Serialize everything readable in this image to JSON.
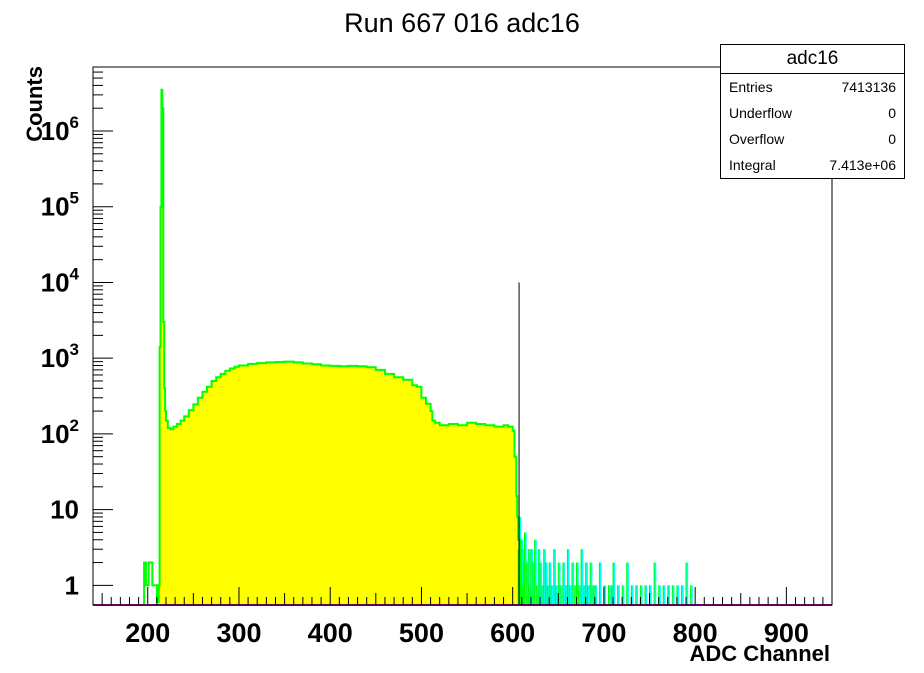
{
  "chart_data": {
    "type": "histogram",
    "title": "Run 667 016 adc16",
    "xlabel": "ADC Channel",
    "ylabel": "Counts",
    "xlim": [
      140,
      950
    ],
    "ylim": [
      0.55,
      7000000
    ],
    "log_y": true,
    "x_ticks": [
      "200",
      "300",
      "400",
      "500",
      "600",
      "700",
      "800",
      "900"
    ],
    "y_ticks": [
      {
        "value": 1,
        "base": "1",
        "exp": ""
      },
      {
        "value": 10,
        "base": "10",
        "exp": ""
      },
      {
        "value": 100,
        "base": "10",
        "exp": "2"
      },
      {
        "value": 1000,
        "base": "10",
        "exp": "3"
      },
      {
        "value": 10000,
        "base": "10",
        "exp": "4"
      },
      {
        "value": 100000,
        "base": "10",
        "exp": "5"
      },
      {
        "value": 1000000,
        "base": "10",
        "exp": "6"
      }
    ],
    "colors": {
      "fill_main": "#ffff00",
      "line_main": "#00ff00",
      "fill_tail": "#00ffff",
      "baseline": "#cc00cc",
      "marker": "#000000"
    },
    "marker_line": {
      "x": 607,
      "y": 10000
    },
    "main_series": [
      [
        196,
        2
      ],
      [
        198,
        1
      ],
      [
        201,
        2
      ],
      [
        205,
        1
      ],
      [
        210,
        0.6
      ],
      [
        212,
        1
      ],
      [
        213,
        1400
      ],
      [
        214,
        100000
      ],
      [
        215,
        3500000
      ],
      [
        216,
        2000000
      ],
      [
        217,
        3000
      ],
      [
        218,
        400
      ],
      [
        219,
        200
      ],
      [
        220,
        150
      ],
      [
        222,
        120
      ],
      [
        225,
        115
      ],
      [
        228,
        125
      ],
      [
        232,
        135
      ],
      [
        236,
        150
      ],
      [
        240,
        170
      ],
      [
        245,
        205
      ],
      [
        250,
        245
      ],
      [
        255,
        300
      ],
      [
        260,
        360
      ],
      [
        265,
        420
      ],
      [
        270,
        500
      ],
      [
        275,
        560
      ],
      [
        280,
        620
      ],
      [
        285,
        680
      ],
      [
        290,
        730
      ],
      [
        295,
        770
      ],
      [
        300,
        800
      ],
      [
        310,
        840
      ],
      [
        320,
        860
      ],
      [
        330,
        880
      ],
      [
        340,
        890
      ],
      [
        350,
        900
      ],
      [
        360,
        880
      ],
      [
        370,
        850
      ],
      [
        380,
        830
      ],
      [
        390,
        800
      ],
      [
        400,
        790
      ],
      [
        410,
        780
      ],
      [
        420,
        790
      ],
      [
        430,
        780
      ],
      [
        440,
        760
      ],
      [
        450,
        700
      ],
      [
        460,
        620
      ],
      [
        470,
        560
      ],
      [
        480,
        520
      ],
      [
        490,
        440
      ],
      [
        495,
        420
      ],
      [
        500,
        300
      ],
      [
        505,
        250
      ],
      [
        510,
        200
      ],
      [
        512,
        150
      ],
      [
        515,
        140
      ],
      [
        520,
        130
      ],
      [
        530,
        135
      ],
      [
        540,
        130
      ],
      [
        550,
        140
      ],
      [
        560,
        135
      ],
      [
        570,
        130
      ],
      [
        580,
        125
      ],
      [
        590,
        130
      ],
      [
        595,
        125
      ],
      [
        600,
        110
      ],
      [
        602,
        50
      ],
      [
        604,
        15
      ],
      [
        605,
        8
      ],
      [
        606,
        4
      ]
    ],
    "tail_series": [
      [
        606,
        3
      ],
      [
        607,
        8
      ],
      [
        608,
        2
      ],
      [
        609,
        4
      ],
      [
        610,
        3
      ],
      [
        611,
        1
      ],
      [
        612,
        2
      ],
      [
        613,
        5
      ],
      [
        615,
        2
      ],
      [
        617,
        3
      ],
      [
        618,
        1
      ],
      [
        620,
        3
      ],
      [
        622,
        2
      ],
      [
        624,
        4
      ],
      [
        626,
        1
      ],
      [
        628,
        3
      ],
      [
        630,
        2
      ],
      [
        632,
        1
      ],
      [
        634,
        3
      ],
      [
        636,
        2
      ],
      [
        638,
        1
      ],
      [
        640,
        2
      ],
      [
        642,
        1
      ],
      [
        645,
        3
      ],
      [
        647,
        1
      ],
      [
        650,
        2
      ],
      [
        652,
        1
      ],
      [
        655,
        2
      ],
      [
        658,
        1
      ],
      [
        660,
        3
      ],
      [
        662,
        1
      ],
      [
        665,
        2
      ],
      [
        668,
        1
      ],
      [
        670,
        2
      ],
      [
        672,
        1
      ],
      [
        675,
        3
      ],
      [
        678,
        1
      ],
      [
        680,
        2
      ],
      [
        682,
        1
      ],
      [
        685,
        2
      ],
      [
        688,
        1
      ],
      [
        690,
        1
      ],
      [
        695,
        2
      ],
      [
        700,
        1
      ],
      [
        705,
        1
      ],
      [
        708,
        1
      ],
      [
        710,
        2
      ],
      [
        715,
        1
      ],
      [
        720,
        1
      ],
      [
        725,
        2
      ],
      [
        730,
        1
      ],
      [
        735,
        1
      ],
      [
        740,
        1
      ],
      [
        745,
        1
      ],
      [
        750,
        1
      ],
      [
        755,
        2
      ],
      [
        760,
        1
      ],
      [
        765,
        1
      ],
      [
        770,
        1
      ],
      [
        775,
        1
      ],
      [
        780,
        1
      ],
      [
        785,
        1
      ],
      [
        790,
        2
      ],
      [
        795,
        1
      ]
    ],
    "stats_box": {
      "name": "adc16",
      "rows": [
        {
          "label": "Entries",
          "value": "7413136"
        },
        {
          "label": "Underflow",
          "value": "0"
        },
        {
          "label": "Overflow",
          "value": "0"
        },
        {
          "label": "Integral",
          "value": "7.413e+06"
        }
      ]
    }
  }
}
